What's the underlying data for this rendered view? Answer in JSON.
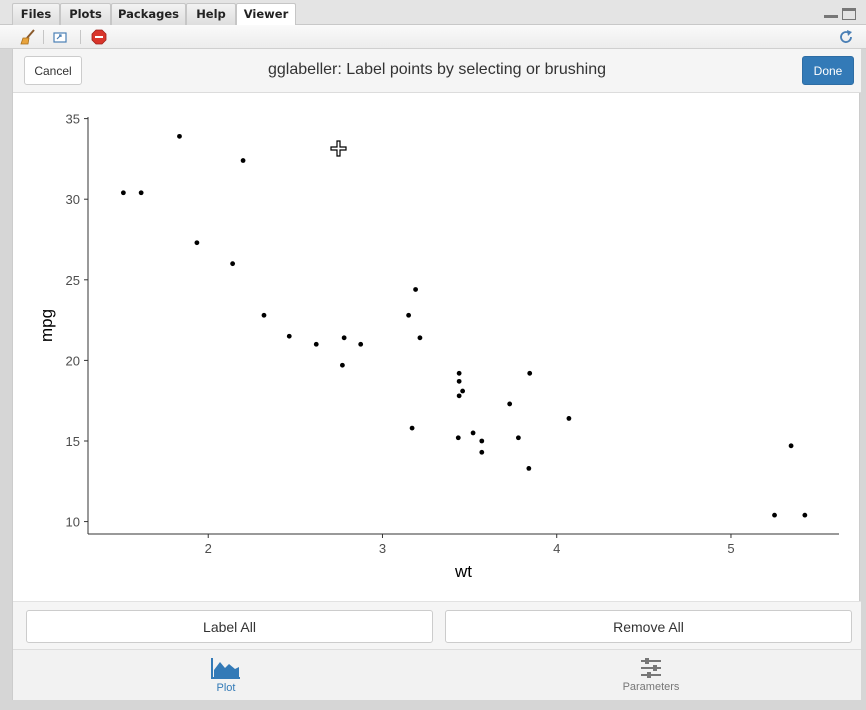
{
  "tabs": [
    {
      "label": "Files",
      "active": false
    },
    {
      "label": "Plots",
      "active": false
    },
    {
      "label": "Packages",
      "active": false
    },
    {
      "label": "Help",
      "active": false
    },
    {
      "label": "Viewer",
      "active": true
    }
  ],
  "toolbar_icons": [
    "broom-icon",
    "export-icon",
    "stop-icon",
    "refresh-icon"
  ],
  "gadget": {
    "cancel_label": "Cancel",
    "title": "gglabeller: Label points by selecting or brushing",
    "done_label": "Done",
    "label_all": "Label All",
    "remove_all": "Remove All"
  },
  "nav": {
    "plot_label": "Plot",
    "parameters_label": "Parameters"
  },
  "colors": {
    "primary": "#337ab7",
    "point": "#000000"
  },
  "chart_data": {
    "type": "scatter",
    "xlabel": "wt",
    "ylabel": "mpg",
    "xlim": [
      1.31,
      5.62
    ],
    "ylim": [
      9.23,
      35.1
    ],
    "xticks": [
      2,
      3,
      4,
      5
    ],
    "yticks": [
      10,
      15,
      20,
      25,
      30,
      35
    ],
    "grid": false,
    "points": [
      {
        "x": 2.62,
        "y": 21.0
      },
      {
        "x": 2.875,
        "y": 21.0
      },
      {
        "x": 2.32,
        "y": 22.8
      },
      {
        "x": 3.215,
        "y": 21.4
      },
      {
        "x": 3.44,
        "y": 18.7
      },
      {
        "x": 3.46,
        "y": 18.1
      },
      {
        "x": 3.57,
        "y": 14.3
      },
      {
        "x": 3.19,
        "y": 24.4
      },
      {
        "x": 3.15,
        "y": 22.8
      },
      {
        "x": 3.44,
        "y": 19.2
      },
      {
        "x": 3.44,
        "y": 17.8
      },
      {
        "x": 4.07,
        "y": 16.4
      },
      {
        "x": 3.73,
        "y": 17.3
      },
      {
        "x": 3.78,
        "y": 15.2
      },
      {
        "x": 5.25,
        "y": 10.4
      },
      {
        "x": 5.424,
        "y": 10.4
      },
      {
        "x": 5.345,
        "y": 14.7
      },
      {
        "x": 2.2,
        "y": 32.4
      },
      {
        "x": 1.615,
        "y": 30.4
      },
      {
        "x": 1.835,
        "y": 33.9
      },
      {
        "x": 2.465,
        "y": 21.5
      },
      {
        "x": 3.52,
        "y": 15.5
      },
      {
        "x": 3.435,
        "y": 15.2
      },
      {
        "x": 3.84,
        "y": 13.3
      },
      {
        "x": 3.845,
        "y": 19.2
      },
      {
        "x": 1.935,
        "y": 27.3
      },
      {
        "x": 2.14,
        "y": 26.0
      },
      {
        "x": 1.513,
        "y": 30.4
      },
      {
        "x": 3.17,
        "y": 15.8
      },
      {
        "x": 2.77,
        "y": 19.7
      },
      {
        "x": 3.57,
        "y": 15.0
      },
      {
        "x": 2.78,
        "y": 21.4
      }
    ]
  }
}
